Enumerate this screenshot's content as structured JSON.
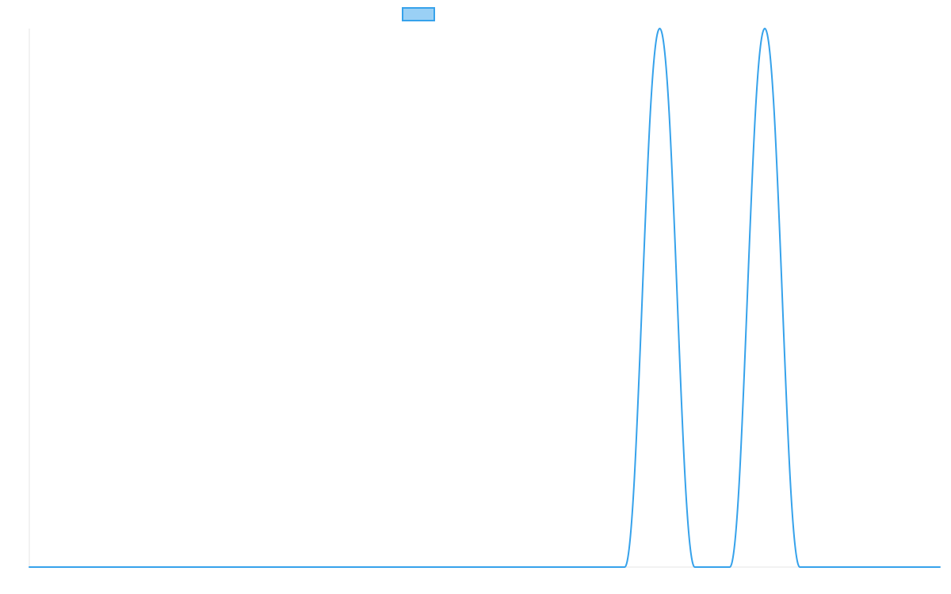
{
  "chart_data": {
    "type": "line",
    "title": "",
    "xlabel": "",
    "ylabel": "",
    "legend": {
      "placement": "top-center",
      "entries": [
        {
          "label": "",
          "color": "#36a2eb",
          "fill": "#9ad0f5"
        }
      ]
    },
    "grid": false,
    "x": [
      0,
      1,
      2,
      3,
      4,
      5,
      6,
      7,
      8,
      9,
      10,
      11,
      12,
      13,
      14,
      15,
      16,
      17,
      18,
      19,
      20,
      21,
      22,
      23,
      24,
      25,
      26
    ],
    "ylim": [
      0,
      1
    ],
    "series": [
      {
        "name": "",
        "color": "#36a2eb",
        "values": [
          0,
          0,
          0,
          0,
          0,
          0,
          0,
          0,
          0,
          0,
          0,
          0,
          0,
          0,
          0,
          0,
          0,
          0,
          1,
          0,
          0,
          1,
          0,
          0,
          0,
          0,
          0
        ]
      }
    ]
  }
}
